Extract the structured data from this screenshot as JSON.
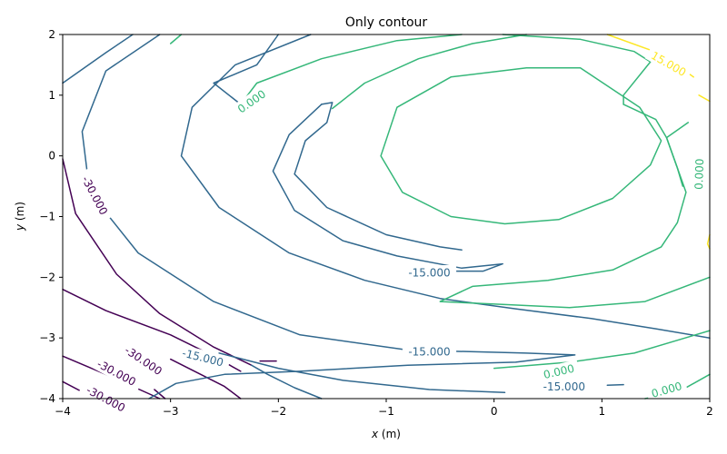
{
  "chart_data": {
    "type": "contour",
    "title": "Only contour",
    "xlabel_var": "x",
    "xlabel_unit": " (m)",
    "ylabel_var": "y",
    "ylabel_unit": " (m)",
    "xlim": [
      -4,
      2
    ],
    "ylim": [
      -4,
      2
    ],
    "xticks": [
      -4,
      -3,
      -2,
      -1,
      0,
      1,
      2
    ],
    "yticks": [
      -4,
      -3,
      -2,
      -1,
      0,
      1,
      2
    ],
    "xtick_labels": [
      "−4",
      "−3",
      "−2",
      "−1",
      "0",
      "1",
      "2"
    ],
    "ytick_labels": [
      "−4",
      "−3",
      "−2",
      "−1",
      "0",
      "1",
      "2"
    ],
    "grid": false,
    "levels": [
      {
        "value": -37.5,
        "color": "#440154"
      },
      {
        "value": -30,
        "label": "-30.000",
        "color": "#440154"
      },
      {
        "value": -22.5,
        "color": "#31688e"
      },
      {
        "value": -15,
        "label": "-15.000",
        "color": "#31688e"
      },
      {
        "value": -7.5,
        "color": "#31688e"
      },
      {
        "value": 0,
        "label": "0.000",
        "color": "#35b779"
      },
      {
        "value": 7.5,
        "color": "#35b779"
      },
      {
        "value": 15,
        "label": "15.000",
        "color": "#fde725"
      }
    ],
    "contours": [
      {
        "level": 0,
        "points": [
          [
            -4,
            -3.3
          ],
          [
            -3.6,
            -3.6
          ],
          [
            -3.1,
            -4
          ]
        ]
      },
      {
        "level": 0,
        "points": [
          [
            -4,
            -3.72
          ],
          [
            -3.7,
            -4
          ]
        ]
      },
      {
        "level": 1,
        "points": [
          [
            -4,
            -0.05
          ],
          [
            -3.88,
            -0.95
          ],
          [
            -3.5,
            -1.95
          ],
          [
            -3.1,
            -2.6
          ],
          [
            -2.6,
            -3.15
          ],
          [
            -2.25,
            -3.45
          ]
        ]
      },
      {
        "level": 1,
        "points": [
          [
            -4,
            -2.2
          ],
          [
            -3.6,
            -2.55
          ],
          [
            -3.0,
            -2.95
          ],
          [
            -2.6,
            -3.3
          ],
          [
            -2.35,
            -3.55
          ]
        ]
      },
      {
        "level": 1,
        "points": [
          [
            -3.0,
            -3.35
          ],
          [
            -2.5,
            -3.8
          ],
          [
            -2.35,
            -4
          ]
        ]
      },
      {
        "level": 1,
        "points": [
          [
            -3.15,
            -3.85
          ],
          [
            -3.05,
            -4
          ]
        ]
      },
      {
        "level": 1,
        "points": [
          [
            -2.17,
            -3.38
          ],
          [
            -2.02,
            -3.38
          ]
        ]
      },
      {
        "level": 2,
        "points": [
          [
            -4,
            1.2
          ],
          [
            -3.6,
            1.7
          ],
          [
            -3.35,
            2.0
          ]
        ]
      },
      {
        "level": 2,
        "points": [
          [
            -2.25,
            -3.45
          ],
          [
            -2.1,
            -3.6
          ],
          [
            -1.85,
            -3.82
          ],
          [
            -1.6,
            -4
          ]
        ]
      },
      {
        "level": 2,
        "points": [
          [
            -3.1,
            2.0
          ],
          [
            -3.6,
            1.4
          ],
          [
            -3.82,
            0.4
          ],
          [
            -3.75,
            -0.6
          ],
          [
            -3.3,
            -1.6
          ],
          [
            -2.6,
            -2.4
          ],
          [
            -1.8,
            -2.95
          ],
          [
            -0.8,
            -3.2
          ],
          [
            0.3,
            -3.25
          ],
          [
            0.75,
            -3.28
          ],
          [
            0.2,
            -3.4
          ],
          [
            -0.8,
            -3.45
          ],
          [
            -1.8,
            -3.55
          ],
          [
            -2.5,
            -3.6
          ],
          [
            -2.95,
            -3.75
          ],
          [
            -3.2,
            -4
          ]
        ]
      },
      {
        "level": 3,
        "points": [
          [
            -1.6,
            0.85
          ],
          [
            -1.9,
            0.35
          ],
          [
            -2.05,
            -0.25
          ],
          [
            -1.85,
            -0.9
          ],
          [
            -1.4,
            -1.4
          ],
          [
            -0.9,
            -1.65
          ],
          [
            -0.3,
            -1.85
          ],
          [
            0.08,
            -1.78
          ],
          [
            -0.1,
            -1.9
          ],
          [
            -0.4,
            -1.9
          ]
        ]
      },
      {
        "level": 3,
        "points": [
          [
            -1.6,
            0.85
          ],
          [
            -1.5,
            0.88
          ],
          [
            -1.55,
            0.55
          ],
          [
            -1.75,
            0.25
          ],
          [
            -1.85,
            -0.3
          ],
          [
            -1.55,
            -0.85
          ],
          [
            -1.0,
            -1.3
          ],
          [
            -0.5,
            -1.5
          ],
          [
            -0.3,
            -1.55
          ]
        ]
      },
      {
        "level": 4,
        "points": [
          [
            -1.7,
            2.0
          ],
          [
            -2.4,
            1.5
          ],
          [
            -2.8,
            0.8
          ],
          [
            -2.9,
            0.0
          ],
          [
            -2.55,
            -0.85
          ],
          [
            -1.9,
            -1.6
          ],
          [
            -1.2,
            -2.05
          ],
          [
            -0.5,
            -2.35
          ],
          [
            0.2,
            -2.52
          ],
          [
            0.9,
            -2.68
          ],
          [
            1.5,
            -2.85
          ],
          [
            2.0,
            -3.0
          ]
        ]
      },
      {
        "level": 4,
        "points": [
          [
            -2.35,
            0.85
          ],
          [
            -2.6,
            1.2
          ],
          [
            -2.2,
            1.5
          ],
          [
            -2.0,
            2.0
          ]
        ]
      },
      {
        "level": 4,
        "points": [
          [
            -2.55,
            -3.25
          ],
          [
            -2.0,
            -3.5
          ],
          [
            -1.4,
            -3.7
          ],
          [
            -0.6,
            -3.85
          ],
          [
            0.1,
            -3.9
          ]
        ]
      },
      {
        "level": 4,
        "points": [
          [
            1.05,
            -3.78
          ],
          [
            1.2,
            -3.77
          ]
        ]
      },
      {
        "level": 5,
        "points": [
          [
            -2.35,
            0.85
          ],
          [
            -2.2,
            1.2
          ],
          [
            -1.6,
            1.6
          ],
          [
            -0.9,
            1.9
          ],
          [
            -0.3,
            2.0
          ]
        ]
      },
      {
        "level": 5,
        "points": [
          [
            -3.0,
            1.85
          ],
          [
            -2.9,
            2.0
          ]
        ]
      },
      {
        "level": 5,
        "points": [
          [
            -1.5,
            0.78
          ],
          [
            -1.2,
            1.2
          ],
          [
            -0.7,
            1.6
          ],
          [
            -0.2,
            1.85
          ],
          [
            0.3,
            2.0
          ]
        ]
      },
      {
        "level": 5,
        "points": [
          [
            1.8,
            0.55
          ],
          [
            1.6,
            0.3
          ],
          [
            1.7,
            -0.2
          ],
          [
            1.78,
            -0.6
          ],
          [
            1.7,
            -1.1
          ],
          [
            1.55,
            -1.5
          ],
          [
            1.1,
            -1.88
          ],
          [
            0.5,
            -2.05
          ],
          [
            -0.2,
            -2.15
          ],
          [
            -0.5,
            -2.4
          ],
          [
            0.1,
            -2.45
          ],
          [
            0.7,
            -2.5
          ],
          [
            1.4,
            -2.4
          ],
          [
            2.0,
            -2.0
          ]
        ]
      },
      {
        "level": 5,
        "points": [
          [
            0.0,
            -3.5
          ],
          [
            0.7,
            -3.4
          ],
          [
            1.3,
            -3.25
          ],
          [
            2.0,
            -2.88
          ]
        ]
      },
      {
        "level": 5,
        "points": [
          [
            1.4,
            -4.0
          ],
          [
            1.7,
            -3.9
          ],
          [
            2.0,
            -3.6
          ]
        ]
      },
      {
        "level": 6,
        "points": [
          [
            0.08,
            2.0
          ],
          [
            0.8,
            1.92
          ],
          [
            1.3,
            1.72
          ],
          [
            1.45,
            1.55
          ],
          [
            1.2,
            1.0
          ],
          [
            1.2,
            0.85
          ]
        ]
      },
      {
        "level": 6,
        "points": [
          [
            1.2,
            0.85
          ],
          [
            1.5,
            0.6
          ],
          [
            1.6,
            0.3
          ],
          [
            1.7,
            -0.2
          ],
          [
            1.75,
            -0.5
          ]
        ]
      },
      {
        "level": 6,
        "points": [
          [
            0.8,
            1.45
          ],
          [
            0.3,
            1.45
          ],
          [
            -0.4,
            1.3
          ],
          [
            -0.9,
            0.8
          ],
          [
            -1.05,
            0.0
          ],
          [
            -0.85,
            -0.6
          ],
          [
            -0.4,
            -1.0
          ],
          [
            0.1,
            -1.12
          ],
          [
            0.6,
            -1.05
          ],
          [
            1.1,
            -0.7
          ],
          [
            1.45,
            -0.15
          ],
          [
            1.55,
            0.25
          ],
          [
            1.35,
            0.8
          ],
          [
            0.8,
            1.45
          ]
        ]
      },
      {
        "level": 7,
        "points": [
          [
            1.05,
            2.0
          ],
          [
            1.55,
            1.68
          ],
          [
            1.85,
            1.3
          ]
        ]
      },
      {
        "level": 7,
        "points": [
          [
            1.9,
            1.0
          ],
          [
            2.0,
            0.9
          ]
        ]
      },
      {
        "level": 7,
        "points": [
          [
            2.0,
            -1.53
          ],
          [
            1.98,
            -1.45
          ],
          [
            2.0,
            -1.3
          ]
        ]
      }
    ],
    "labels": [
      {
        "text": "-30.000",
        "x": -3.7,
        "y": -0.65,
        "rotation": 62,
        "level": 1
      },
      {
        "text": "-30.000",
        "x": -3.25,
        "y": -3.37,
        "rotation": 34,
        "level": 1
      },
      {
        "text": "-30.000",
        "x": -3.5,
        "y": -3.57,
        "rotation": 28,
        "level": 1
      },
      {
        "text": "-30.000",
        "x": -3.6,
        "y": -4.0,
        "rotation": 28,
        "level": 1
      },
      {
        "text": "-15.000",
        "x": -0.6,
        "y": -1.92,
        "rotation": 0,
        "level": 3
      },
      {
        "text": "-15.000",
        "x": -2.7,
        "y": -3.32,
        "rotation": 14,
        "level": 3
      },
      {
        "text": "-15.000",
        "x": -0.6,
        "y": -3.22,
        "rotation": 0,
        "level": 3
      },
      {
        "text": "-15.000",
        "x": 0.65,
        "y": -3.8,
        "rotation": 0,
        "level": 3
      },
      {
        "text": "0.000",
        "x": -2.25,
        "y": 0.9,
        "rotation": -35,
        "level": 5
      },
      {
        "text": "0.000",
        "x": 1.9,
        "y": -0.3,
        "rotation": -88,
        "level": 5
      },
      {
        "text": "0.000",
        "x": 0.6,
        "y": -3.55,
        "rotation": -13,
        "level": 5
      },
      {
        "text": "0.000",
        "x": 1.6,
        "y": -3.85,
        "rotation": -16,
        "level": 5
      },
      {
        "text": "15.000",
        "x": 1.62,
        "y": 1.52,
        "rotation": 30,
        "level": 7
      }
    ]
  }
}
